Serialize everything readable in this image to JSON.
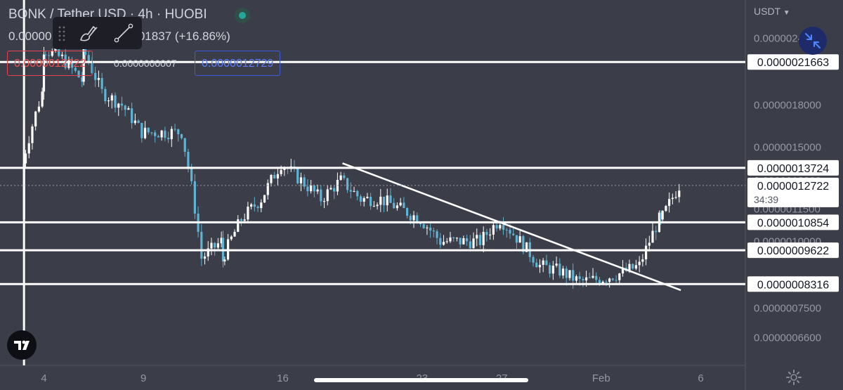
{
  "header": {
    "title": "BONK / Tether USD · 4h · HUOBI",
    "ohlc_text": "0.0000010881 +0.0000001837 (+16.86%)"
  },
  "toolbar": {
    "items": [
      {
        "name": "drag-handle",
        "icon": "grip-icon"
      },
      {
        "name": "brush-tool",
        "icon": "brush-icon"
      },
      {
        "name": "trend-line-tool",
        "icon": "line-icon"
      }
    ]
  },
  "order_prices": {
    "sell": "0.0000012722",
    "spread": "0.0000000007",
    "buy": "0.0000012729"
  },
  "axis": {
    "currency": "USDT",
    "price_ticks": [
      "0.0000024000",
      "0.0000018000",
      "0.0000015000",
      "0.0000013000",
      "0.0000011500",
      "0.0000010000",
      "0.0000007500",
      "0.0000006600"
    ],
    "time_ticks": [
      "4",
      "9",
      "16",
      "23",
      "27",
      "Feb",
      "6"
    ]
  },
  "current_price": {
    "label": "0.0000012722",
    "countdown": "34:39"
  },
  "colors": {
    "background": "#3b3d48",
    "up_candle": "#ffffff",
    "down_candle": "#5fb3d3",
    "level_line": "#ffffff",
    "sell_box": "#e5434f",
    "buy_box": "#3d5bd9"
  },
  "chart_data": {
    "type": "candlestick",
    "title": "BONK / Tether USD · 4h · HUOBI",
    "xlabel": "",
    "ylabel": "",
    "grid": false,
    "y_scale": "log",
    "ylim": [
      6e-07,
      2.6e-06
    ],
    "x_range": [
      "2023-01-03",
      "2023-02-07"
    ],
    "x_ticks": [
      {
        "label": "4",
        "date": "2023-01-04"
      },
      {
        "label": "9",
        "date": "2023-01-09"
      },
      {
        "label": "16",
        "date": "2023-01-16"
      },
      {
        "label": "23",
        "date": "2023-01-23"
      },
      {
        "label": "27",
        "date": "2023-01-27"
      },
      {
        "label": "Feb",
        "date": "2023-02-01"
      },
      {
        "label": "6",
        "date": "2023-02-06"
      }
    ],
    "horizontal_levels": [
      {
        "value": 2.1663e-06,
        "label": "0.0000021663"
      },
      {
        "value": 1.3724e-06,
        "label": "0.0000013724"
      },
      {
        "value": 1.0854e-06,
        "label": "0.0000010854"
      },
      {
        "value": 9.622e-07,
        "label": "0.0000009622"
      },
      {
        "value": 8.316e-07,
        "label": "0.0000008316"
      }
    ],
    "vertical_lines": [
      {
        "date": "2023-01-03"
      }
    ],
    "trend_line": {
      "from": {
        "date": "2023-01-19",
        "value": 1.4e-06
      },
      "to": {
        "date": "2023-02-05",
        "value": 8.1e-07
      }
    },
    "price_path": [
      {
        "date": "2023-01-03",
        "value": 1.1e-06
      },
      {
        "date": "2023-01-03",
        "value": 1.4e-06
      },
      {
        "date": "2023-01-04",
        "value": 1.9e-06
      },
      {
        "date": "2023-01-04",
        "value": 2.3e-06
      },
      {
        "date": "2023-01-05",
        "value": 2.2e-06
      },
      {
        "date": "2023-01-06",
        "value": 2e-06
      },
      {
        "date": "2023-01-06",
        "value": 2.3e-06
      },
      {
        "date": "2023-01-07",
        "value": 1.9e-06
      },
      {
        "date": "2023-01-08",
        "value": 1.8e-06
      },
      {
        "date": "2023-01-09",
        "value": 1.6e-06
      },
      {
        "date": "2023-01-10",
        "value": 1.6e-06
      },
      {
        "date": "2023-01-11",
        "value": 1.6e-06
      },
      {
        "date": "2023-01-12",
        "value": 9.3e-07
      },
      {
        "date": "2023-01-13",
        "value": 1e-06
      },
      {
        "date": "2023-01-13",
        "value": 9.2e-07
      },
      {
        "date": "2023-01-14",
        "value": 1.1e-06
      },
      {
        "date": "2023-01-15",
        "value": 1.2e-06
      },
      {
        "date": "2023-01-16",
        "value": 1.4e-06
      },
      {
        "date": "2023-01-17",
        "value": 1.3e-06
      },
      {
        "date": "2023-01-18",
        "value": 1.2e-06
      },
      {
        "date": "2023-01-19",
        "value": 1.3e-06
      },
      {
        "date": "2023-01-20",
        "value": 1.2e-06
      },
      {
        "date": "2023-01-21",
        "value": 1.2e-06
      },
      {
        "date": "2023-01-23",
        "value": 1.1e-06
      },
      {
        "date": "2023-01-24",
        "value": 1e-06
      },
      {
        "date": "2023-01-25",
        "value": 1e-06
      },
      {
        "date": "2023-01-26",
        "value": 1e-06
      },
      {
        "date": "2023-01-27",
        "value": 1.1e-06
      },
      {
        "date": "2023-01-28",
        "value": 1e-06
      },
      {
        "date": "2023-01-29",
        "value": 9e-07
      },
      {
        "date": "2023-01-30",
        "value": 8.8e-07
      },
      {
        "date": "2023-01-31",
        "value": 8.4e-07
      },
      {
        "date": "2023-02-01",
        "value": 8.5e-07
      },
      {
        "date": "2023-02-02",
        "value": 8.7e-07
      },
      {
        "date": "2023-02-03",
        "value": 9e-07
      },
      {
        "date": "2023-02-04",
        "value": 1.1e-06
      },
      {
        "date": "2023-02-04",
        "value": 1.08e-06
      },
      {
        "date": "2023-02-05",
        "value": 1.2722e-06
      }
    ]
  }
}
